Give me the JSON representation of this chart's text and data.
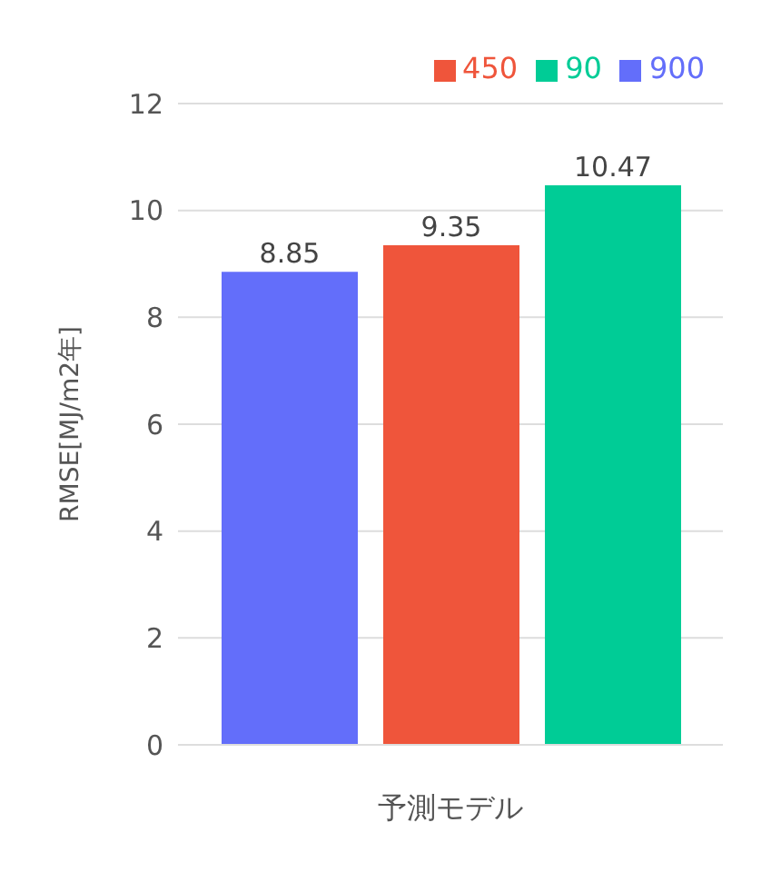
{
  "chart_data": {
    "type": "bar",
    "categories": [
      null
    ],
    "xlabel": "予測モデル",
    "ylabel": "RMSE[MJ/m2年]",
    "series": [
      {
        "name": "900",
        "color": "#636efa",
        "values": [
          8.85
        ]
      },
      {
        "name": "450",
        "color": "#ef553b",
        "values": [
          9.35
        ]
      },
      {
        "name": "90",
        "color": "#00cc96",
        "values": [
          10.47
        ]
      }
    ],
    "ylim": [
      0,
      12
    ],
    "yticks": [
      0,
      2,
      4,
      6,
      8,
      10,
      12
    ],
    "grid": "y",
    "legend": "top right",
    "data_labels": true
  }
}
